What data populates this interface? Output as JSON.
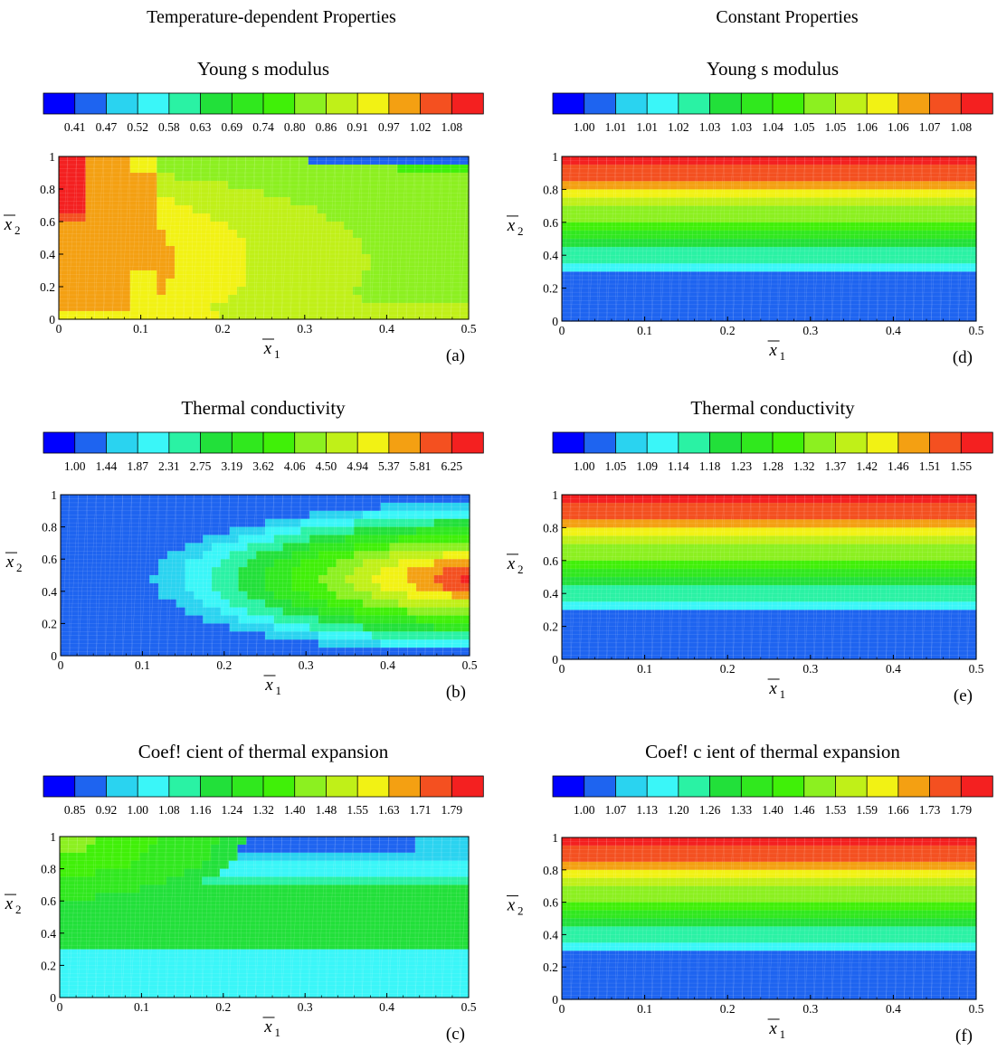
{
  "column_titles": {
    "left": "Temperature-dependent Properties",
    "right": "Constant Properties"
  },
  "palette": [
    "#0000ff",
    "#1e64f0",
    "#2ad3f0",
    "#3af6f8",
    "#2af2a4",
    "#22e03a",
    "#30e81e",
    "#40f008",
    "#8cf020",
    "#c0f018",
    "#f2f214",
    "#f4a012",
    "#f45020",
    "#f42020"
  ],
  "colors": {
    "grid_line": "#ffffff",
    "band_order_note": "palette index 0 = lowest value"
  },
  "chart_data": [
    {
      "id": "a",
      "panel_label": "(a)",
      "type": "heatmap",
      "title": "Young s modulus",
      "colorbar_ticks": [
        "0.41",
        "0.47",
        "0.52",
        "0.58",
        "0.63",
        "0.69",
        "0.74",
        "0.80",
        "0.86",
        "0.91",
        "0.97",
        "1.02",
        "1.08"
      ],
      "x_ticks": [
        "0",
        "0.1",
        "0.2",
        "0.3",
        "0.4",
        "0.5"
      ],
      "y_ticks": [
        "0",
        "0.2",
        "0.4",
        "0.6",
        "0.8",
        "1"
      ],
      "xlim": [
        0,
        0.5
      ],
      "ylim": [
        0,
        1
      ],
      "xlabel": "x",
      "xlabel_sub": "1",
      "ylabel": "x",
      "ylabel_sub": "2",
      "field": "young_td"
    },
    {
      "id": "b",
      "panel_label": "(b)",
      "type": "heatmap",
      "title": "Thermal conductivity",
      "colorbar_ticks": [
        "1.00",
        "1.44",
        "1.87",
        "2.31",
        "2.75",
        "3.19",
        "3.62",
        "4.06",
        "4.50",
        "4.94",
        "5.37",
        "5.81",
        "6.25"
      ],
      "x_ticks": [
        "0",
        "0.1",
        "0.2",
        "0.3",
        "0.4",
        "0.5"
      ],
      "y_ticks": [
        "0",
        "0.2",
        "0.4",
        "0.6",
        "0.8",
        "1"
      ],
      "xlim": [
        0,
        0.5
      ],
      "ylim": [
        0,
        1
      ],
      "xlabel": "x",
      "xlabel_sub": "1",
      "ylabel": "x",
      "ylabel_sub": "2",
      "field": "conductivity_td"
    },
    {
      "id": "c",
      "panel_label": "(c)",
      "type": "heatmap",
      "title": "Coef! cient of thermal expansion",
      "colorbar_ticks": [
        "0.85",
        "0.92",
        "1.00",
        "1.08",
        "1.16",
        "1.24",
        "1.32",
        "1.40",
        "1.48",
        "1.55",
        "1.63",
        "1.71",
        "1.79"
      ],
      "x_ticks": [
        "0",
        "0.1",
        "0.2",
        "0.3",
        "0.4",
        "0.5"
      ],
      "y_ticks": [
        "0",
        "0.2",
        "0.4",
        "0.6",
        "0.8",
        "1"
      ],
      "xlim": [
        0,
        0.5
      ],
      "ylim": [
        0,
        1
      ],
      "xlabel": "x",
      "xlabel_sub": "1",
      "ylabel": "x",
      "ylabel_sub": "2",
      "field": "expansion_td"
    },
    {
      "id": "d",
      "panel_label": "(d)",
      "type": "heatmap",
      "title": "Young s modulus",
      "colorbar_ticks": [
        "1.00",
        "1.01",
        "1.01",
        "1.02",
        "1.03",
        "1.03",
        "1.04",
        "1.05",
        "1.05",
        "1.06",
        "1.06",
        "1.07",
        "1.08"
      ],
      "x_ticks": [
        "0",
        "0.1",
        "0.2",
        "0.3",
        "0.4",
        "0.5"
      ],
      "y_ticks": [
        "0",
        "0.2",
        "0.4",
        "0.6",
        "0.8",
        "1"
      ],
      "xlim": [
        0,
        0.5
      ],
      "ylim": [
        0,
        1
      ],
      "xlabel": "x",
      "xlabel_sub": "1",
      "ylabel": "x",
      "ylabel_sub": "2",
      "field": "young_const"
    },
    {
      "id": "e",
      "panel_label": "(e)",
      "type": "heatmap",
      "title": "Thermal conductivity",
      "colorbar_ticks": [
        "1.00",
        "1.05",
        "1.09",
        "1.14",
        "1.18",
        "1.23",
        "1.28",
        "1.32",
        "1.37",
        "1.42",
        "1.46",
        "1.51",
        "1.55"
      ],
      "x_ticks": [
        "0",
        "0.1",
        "0.2",
        "0.3",
        "0.4",
        "0.5"
      ],
      "y_ticks": [
        "0",
        "0.2",
        "0.4",
        "0.6",
        "0.8",
        "1"
      ],
      "xlim": [
        0,
        0.5
      ],
      "ylim": [
        0,
        1
      ],
      "xlabel": "x",
      "xlabel_sub": "1",
      "ylabel": "x",
      "ylabel_sub": "2",
      "field": "conductivity_const"
    },
    {
      "id": "f",
      "panel_label": "(f)",
      "type": "heatmap",
      "title": "Coef! c ient of thermal expansion",
      "colorbar_ticks": [
        "1.00",
        "1.07",
        "1.13",
        "1.20",
        "1.26",
        "1.33",
        "1.40",
        "1.46",
        "1.53",
        "1.59",
        "1.66",
        "1.73",
        "1.79"
      ],
      "x_ticks": [
        "0",
        "0.1",
        "0.2",
        "0.3",
        "0.4",
        "0.5"
      ],
      "y_ticks": [
        "0",
        "0.2",
        "0.4",
        "0.6",
        "0.8",
        "1"
      ],
      "xlim": [
        0,
        0.5
      ],
      "ylim": [
        0,
        1
      ],
      "xlabel": "x",
      "xlabel_sub": "1",
      "ylabel": "x",
      "ylabel_sub": "2",
      "field": "expansion_const"
    }
  ]
}
